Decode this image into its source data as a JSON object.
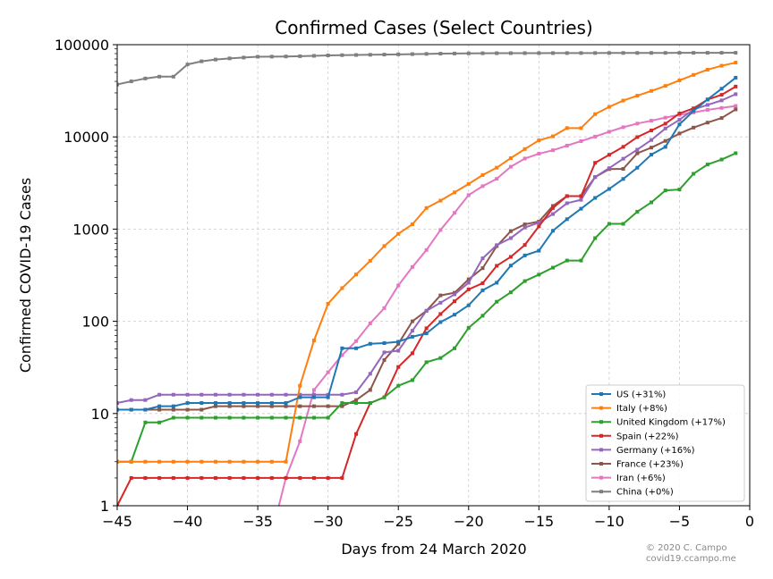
{
  "chart_data": {
    "type": "line",
    "title": "Confirmed Cases (Select Countries)",
    "xlabel": "Days from 24 March 2020",
    "ylabel": "Confirmed COVID-19 Cases",
    "xlim": [
      -45,
      0
    ],
    "ylim": [
      1,
      100000
    ],
    "yscale": "log",
    "x_ticks": [
      -45,
      -40,
      -35,
      -30,
      -25,
      -20,
      -15,
      -10,
      -5,
      0
    ],
    "x_tick_labels": [
      "−45",
      "−40",
      "−35",
      "−30",
      "−25",
      "−20",
      "−15",
      "−10",
      "−5",
      "0"
    ],
    "y_ticks": [
      1,
      10,
      100,
      1000,
      10000,
      100000
    ],
    "y_tick_labels": [
      "1",
      "10",
      "100",
      "1000",
      "10000",
      "100000"
    ],
    "grid": true,
    "legend_position": "lower-right",
    "x": [
      -45,
      -44,
      -43,
      -42,
      -41,
      -40,
      -39,
      -38,
      -37,
      -36,
      -35,
      -34,
      -33,
      -32,
      -31,
      -30,
      -29,
      -28,
      -27,
      -26,
      -25,
      -24,
      -23,
      -22,
      -21,
      -20,
      -19,
      -18,
      -17,
      -16,
      -15,
      -14,
      -13,
      -12,
      -11,
      -10,
      -9,
      -8,
      -7,
      -6,
      -5,
      -4,
      -3,
      -2,
      -1
    ],
    "series": [
      {
        "name": "US (+31%)",
        "color": "#1f77b4",
        "values": [
          11,
          11,
          11,
          12,
          12,
          13,
          13,
          13,
          13,
          13,
          13,
          13,
          13,
          15,
          15,
          15,
          51,
          51,
          57,
          58,
          60,
          68,
          74,
          98,
          118,
          149,
          217,
          262,
          402,
          518,
          583,
          959,
          1281,
          1663,
          2179,
          2726,
          3499,
          4632,
          6421,
          7786,
          13680,
          19101,
          25493,
          33276,
          43847
        ]
      },
      {
        "name": "Italy (+8%)",
        "color": "#ff7f0e",
        "values": [
          3,
          3,
          3,
          3,
          3,
          3,
          3,
          3,
          3,
          3,
          3,
          3,
          3,
          20,
          62,
          155,
          229,
          322,
          453,
          655,
          888,
          1128,
          1694,
          2036,
          2502,
          3089,
          3858,
          4636,
          5883,
          7375,
          9172,
          10149,
          12462,
          12462,
          17660,
          21157,
          24747,
          27980,
          31506,
          35713,
          41035,
          47021,
          53578,
          59138,
          63927
        ]
      },
      {
        "name": "United Kingdom (+17%)",
        "color": "#2ca02c",
        "values": [
          3,
          3,
          8,
          8,
          9,
          9,
          9,
          9,
          9,
          9,
          9,
          9,
          9,
          9,
          9,
          9,
          13,
          13,
          13,
          15,
          20,
          23,
          36,
          40,
          51,
          85,
          115,
          163,
          206,
          273,
          321,
          382,
          456,
          456,
          798,
          1140,
          1140,
          1543,
          1950,
          2626,
          2689,
          3983,
          5018,
          5683,
          6650
        ]
      },
      {
        "name": "Spain (+22%)",
        "color": "#d62728",
        "values": [
          1,
          2,
          2,
          2,
          2,
          2,
          2,
          2,
          2,
          2,
          2,
          2,
          2,
          2,
          2,
          2,
          2,
          6,
          13,
          15,
          32,
          45,
          84,
          120,
          165,
          222,
          259,
          400,
          500,
          673,
          1073,
          1695,
          2277,
          2277,
          5232,
          6391,
          7798,
          9942,
          11748,
          13910,
          17963,
          20410,
          25374,
          28603,
          35136
        ]
      },
      {
        "name": "Germany (+16%)",
        "color": "#9467bd",
        "values": [
          13,
          14,
          14,
          16,
          16,
          16,
          16,
          16,
          16,
          16,
          16,
          16,
          16,
          16,
          16,
          16,
          16,
          17,
          27,
          46,
          48,
          79,
          130,
          159,
          196,
          262,
          482,
          670,
          799,
          1040,
          1176,
          1457,
          1908,
          2078,
          3675,
          4585,
          5795,
          7272,
          9257,
          12327,
          15320,
          19848,
          22213,
          24873,
          29056
        ]
      },
      {
        "name": "France (+23%)",
        "color": "#8c564b",
        "values": [
          11,
          11,
          11,
          11,
          11,
          11,
          11,
          12,
          12,
          12,
          12,
          12,
          12,
          12,
          12,
          12,
          12,
          14,
          18,
          38,
          57,
          100,
          130,
          191,
          204,
          285,
          377,
          653,
          949,
          1126,
          1209,
          1784,
          2281,
          2281,
          3661,
          4469,
          4499,
          6633,
          7652,
          9043,
          10871,
          12612,
          14282,
          16018,
          19856
        ]
      },
      {
        "name": "Iran (+6%)",
        "color": "#e377c2",
        "values": [
          null,
          null,
          null,
          null,
          null,
          null,
          null,
          null,
          null,
          null,
          null,
          0.5,
          2,
          5,
          18,
          28,
          43,
          61,
          95,
          139,
          245,
          388,
          593,
          978,
          1501,
          2336,
          2922,
          3513,
          4747,
          5823,
          6566,
          7161,
          8042,
          9000,
          10075,
          11364,
          12729,
          13938,
          14991,
          16169,
          17361,
          18407,
          19644,
          20610,
          21638
        ]
      },
      {
        "name": "China (+0%)",
        "color": "#7f7f7f",
        "values": [
          37000,
          40000,
          43000,
          45000,
          45000,
          61000,
          66000,
          69000,
          71000,
          72500,
          74000,
          74200,
          74500,
          75000,
          75700,
          76500,
          77000,
          77300,
          77700,
          78100,
          78500,
          79000,
          79400,
          79900,
          80200,
          80500,
          80700,
          80800,
          80900,
          80950,
          81000,
          81050,
          81100,
          81150,
          81200,
          81250,
          81300,
          81350,
          81400,
          81450,
          81500,
          81550,
          81600,
          81650,
          81700
        ]
      }
    ]
  },
  "credit": {
    "line1": "© 2020 C. Campo",
    "line2": "covid19.ccampo.me"
  }
}
